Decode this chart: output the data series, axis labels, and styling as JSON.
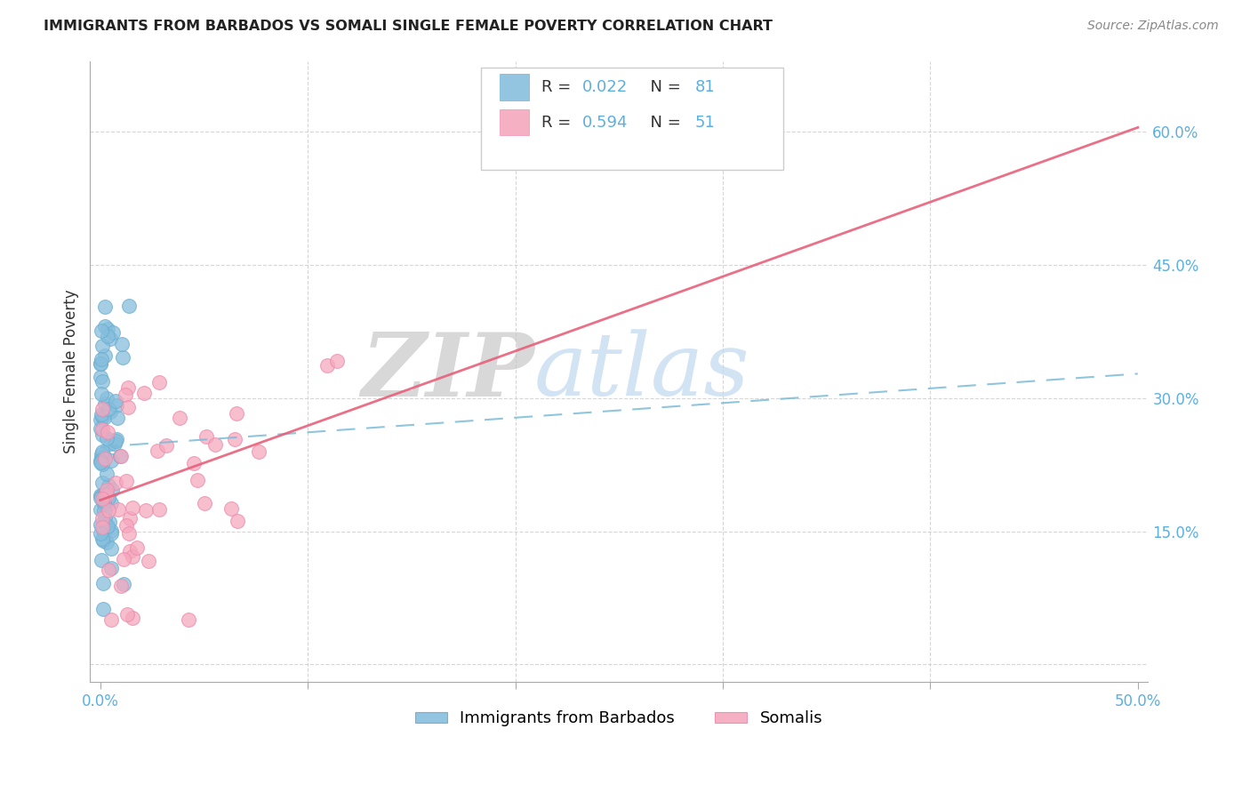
{
  "title": "IMMIGRANTS FROM BARBADOS VS SOMALI SINGLE FEMALE POVERTY CORRELATION CHART",
  "source": "Source: ZipAtlas.com",
  "ylabel": "Single Female Poverty",
  "xlim": [
    -0.005,
    0.505
  ],
  "ylim": [
    -0.02,
    0.68
  ],
  "xtick_positions": [
    0.0,
    0.1,
    0.2,
    0.3,
    0.4,
    0.5
  ],
  "ytick_positions": [
    0.0,
    0.15,
    0.3,
    0.45,
    0.6
  ],
  "ytick_labels": [
    "",
    "15.0%",
    "30.0%",
    "45.0%",
    "60.0%"
  ],
  "xtick_labels": [
    "0.0%",
    "",
    "",
    "",
    "",
    "50.0%"
  ],
  "watermark_zip": "ZIP",
  "watermark_atlas": "atlas",
  "legend_label1": "Immigrants from Barbados",
  "legend_label2": "Somalis",
  "blue_color": "#87BEDD",
  "pink_color": "#F5A8BE",
  "blue_edge_color": "#6AAFD0",
  "pink_edge_color": "#EE8AAC",
  "blue_trend_color": "#7BBBD8",
  "pink_trend_color": "#E8607A",
  "axis_label_color": "#5BB0E0",
  "title_color": "#222222",
  "grid_color": "#CCCCCC",
  "blue_intercept": 0.245,
  "blue_slope": 0.165,
  "pink_intercept": 0.185,
  "pink_slope": 0.84,
  "seed": 99
}
